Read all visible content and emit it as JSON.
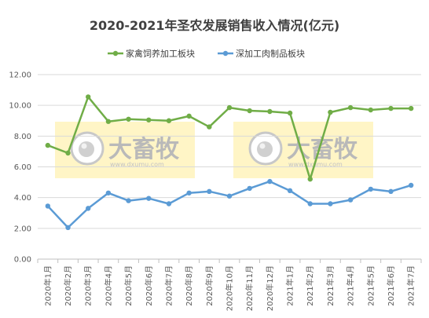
{
  "chart_data": {
    "type": "line",
    "title": "2020-2021年圣农发展销售收入情况(亿元)",
    "categories": [
      "2020年1月",
      "2020年2月",
      "2020年3月",
      "2020年4月",
      "2020年5月",
      "2020年6月",
      "2020年7月",
      "2020年8月",
      "2020年9月",
      "2020年10月",
      "2020年11月",
      "2020年12月",
      "2021年1月",
      "2021年2月",
      "2021年3月",
      "2021年4月",
      "2021年5月",
      "2021年6月",
      "2021年7月"
    ],
    "series": [
      {
        "name": "家禽饲养加工板块",
        "color": "#70ad47",
        "values": [
          7.4,
          6.9,
          10.55,
          8.95,
          9.1,
          9.05,
          9.0,
          9.3,
          8.6,
          9.85,
          9.65,
          9.6,
          9.5,
          5.2,
          9.55,
          9.85,
          9.7,
          9.8,
          9.8
        ]
      },
      {
        "name": "深加工肉制品板块",
        "color": "#5b9bd5",
        "values": [
          3.45,
          2.05,
          3.3,
          4.3,
          3.8,
          3.95,
          3.6,
          4.3,
          4.4,
          4.1,
          4.6,
          5.05,
          4.45,
          3.6,
          3.6,
          3.85,
          4.55,
          4.4,
          4.8
        ]
      }
    ],
    "yticks": [
      "0.00",
      "2.00",
      "4.00",
      "6.00",
      "8.00",
      "10.00",
      "12.00"
    ],
    "ylim": [
      0,
      12
    ],
    "grid": true,
    "legend_position": "top-center"
  },
  "watermark": {
    "text": "大畜牧",
    "sub": "www.dxumu.com"
  }
}
